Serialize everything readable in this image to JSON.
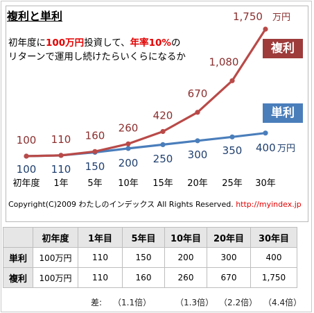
{
  "title": "複利と単利",
  "intro": {
    "line1_a": "初年度に",
    "line1_b": "100万円",
    "line1_c": "投資して、",
    "line1_d": "年率10%",
    "line1_e": "の",
    "line2": "リターンで運用し続けたらいくらになるか"
  },
  "badges": {
    "compound": "複利",
    "simple": "単利"
  },
  "copyright": "Copyright(C)2009 わたしのインデックス All Rights Reserved.",
  "url": "http://myindex.jp",
  "colors": {
    "compound": "#b94a48",
    "simple": "#4a7ebb"
  },
  "chart_data": {
    "type": "line",
    "categories": [
      "初年度",
      "1年",
      "5年",
      "10年",
      "15年",
      "20年",
      "25年",
      "30年"
    ],
    "series": [
      {
        "name": "複利",
        "values": [
          100,
          110,
          160,
          260,
          420,
          670,
          1080,
          1750
        ],
        "labels": [
          "100",
          "110",
          "160",
          "260",
          "420",
          "670",
          "1,080",
          "1,750"
        ]
      },
      {
        "name": "単利",
        "values": [
          100,
          110,
          150,
          200,
          250,
          300,
          350,
          400
        ],
        "labels": [
          "100",
          "110",
          "150",
          "200",
          "250",
          "300",
          "350",
          "400"
        ]
      }
    ],
    "unit": "万円",
    "ylim": [
      0,
      1800
    ],
    "grid": false
  },
  "table": {
    "headers": [
      "",
      "初年度",
      "1年目",
      "5年目",
      "10年目",
      "20年目",
      "30年目"
    ],
    "rows": [
      {
        "label": "単利",
        "cells": [
          "100万円",
          "110",
          "150",
          "200",
          "300",
          "400"
        ]
      },
      {
        "label": "複利",
        "cells": [
          "100万円",
          "110",
          "160",
          "260",
          "670",
          "1,750"
        ]
      }
    ],
    "diff_label": "差:",
    "diff": [
      "（1.1倍）",
      "（1.3倍）",
      "（2.2倍）",
      "（4.4倍）"
    ]
  }
}
